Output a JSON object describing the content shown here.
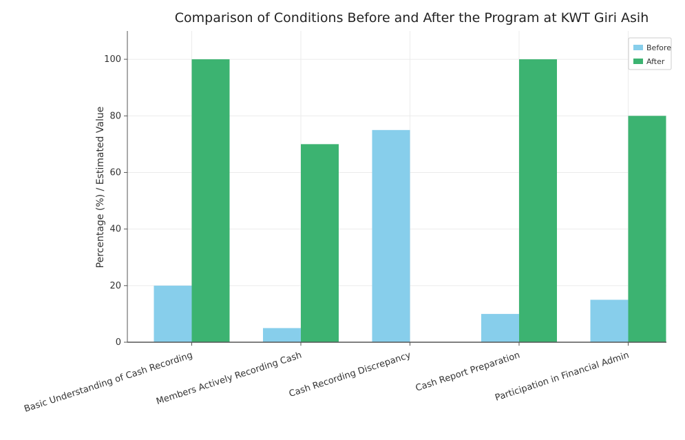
{
  "chart_data": {
    "type": "bar",
    "title": "Comparison of Conditions Before and After the Program at KWT Giri Asih",
    "xlabel": "",
    "ylabel": "Percentage (%) / Estimated Value",
    "ylim": [
      0,
      110
    ],
    "yticks": [
      0,
      20,
      40,
      60,
      80,
      100
    ],
    "grid": true,
    "legend_position": "top-right",
    "categories": [
      "Basic Understanding of Cash Recording",
      "Members Actively Recording Cash",
      "Cash Recording Discrepancy",
      "Cash Report Preparation",
      "Participation in Financial Admin"
    ],
    "series": [
      {
        "name": "Before",
        "color": "#87ceeb",
        "values": [
          20,
          5,
          75,
          10,
          15
        ]
      },
      {
        "name": "After",
        "color": "#3cb371",
        "values": [
          100,
          70,
          0,
          100,
          80
        ]
      }
    ]
  }
}
